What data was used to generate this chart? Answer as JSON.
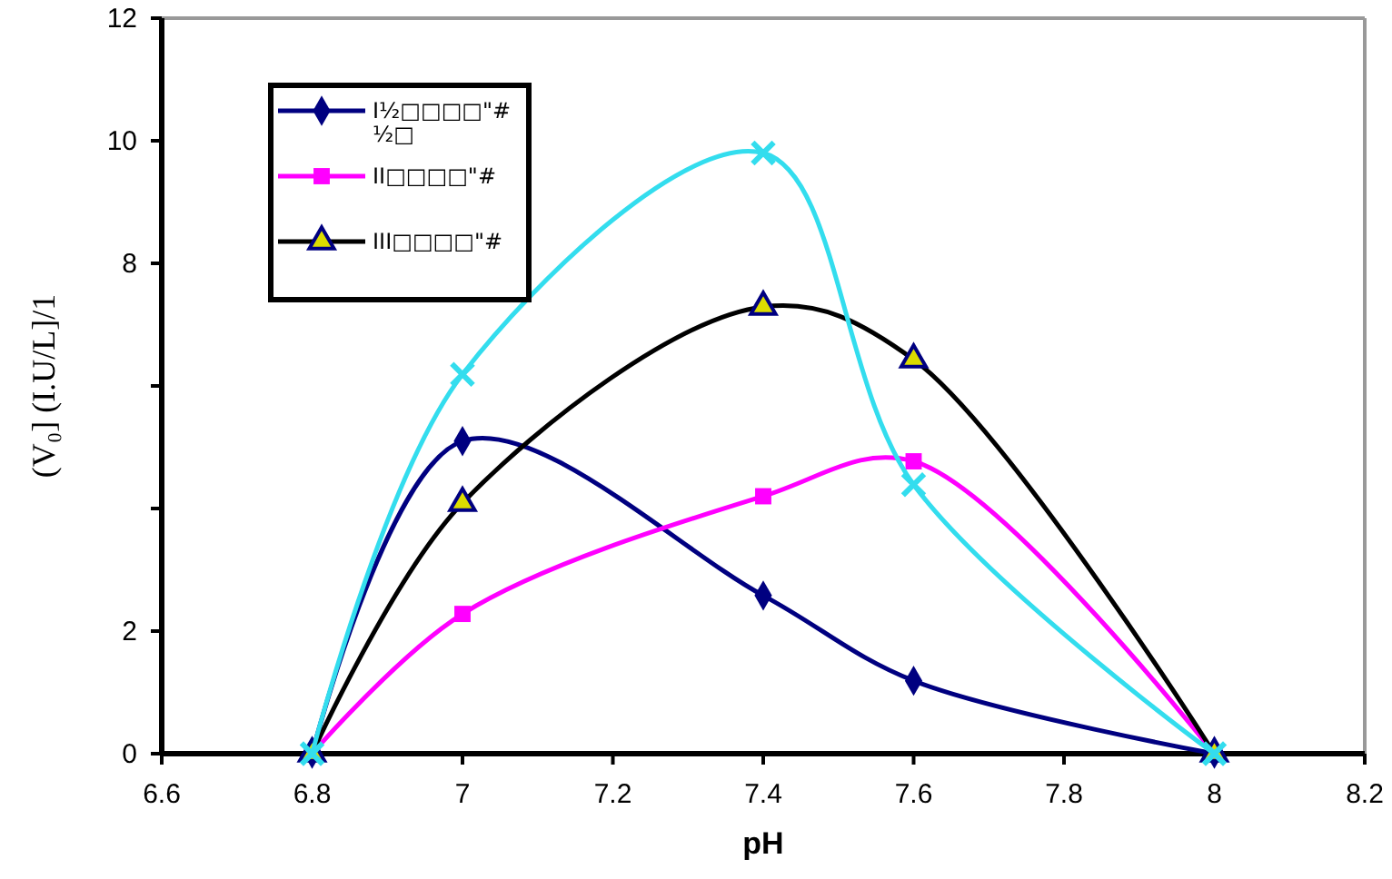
{
  "chart_data": {
    "type": "line",
    "xlabel": "pH",
    "ylabel": "(V₀]  (I.U/L]/1",
    "xlim": [
      6.6,
      8.2
    ],
    "xticks": [
      6.6,
      6.8,
      7,
      7.2,
      7.4,
      7.6,
      7.8,
      8,
      8.2
    ],
    "ylim": [
      0,
      12
    ],
    "yticks": [
      0,
      2,
      {
        "value": 4,
        "label": null
      },
      {
        "value": 6,
        "label": null
      },
      8,
      10,
      12
    ],
    "x": [
      6.8,
      7,
      7.4,
      7.6,
      8
    ],
    "series": [
      {
        "name": "I½□□□□\"#\n½□",
        "color": "#000080",
        "marker": "diamond",
        "values": [
          0,
          5.1,
          2.58,
          1.19,
          0
        ]
      },
      {
        "name": "II□□□□\"#",
        "color": "#ff00ff",
        "marker": "square",
        "values": [
          0,
          2.28,
          4.2,
          4.77,
          0
        ]
      },
      {
        "name": "III□□□□\"#",
        "color": "#000000",
        "marker": "triangle",
        "values": [
          0,
          4.09,
          7.29,
          6.43,
          0
        ]
      },
      {
        "color": "#33ddee",
        "marker": "cross",
        "values": [
          0,
          6.19,
          9.8,
          4.39,
          0
        ]
      }
    ],
    "grid": false,
    "legend": "top left",
    "line_style": "solid"
  }
}
